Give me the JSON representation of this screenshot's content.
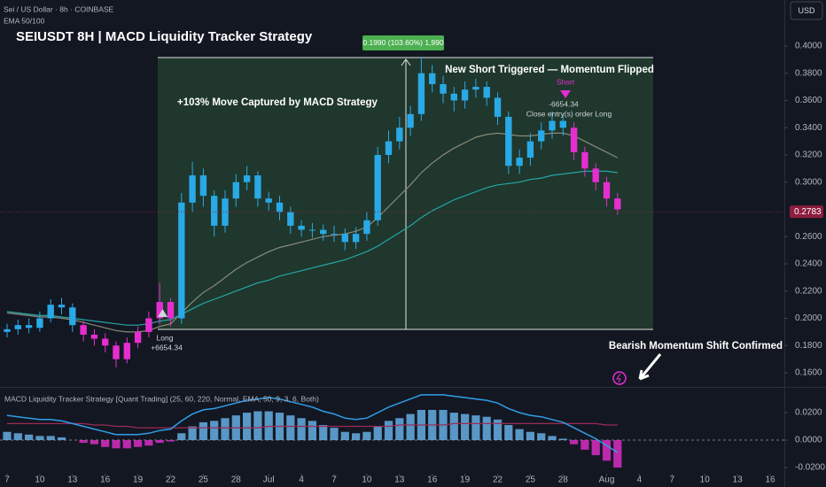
{
  "header": {
    "symbol": "Sei / US Dollar · 8h · COINBASE",
    "indicator": "EMA 50/100",
    "currency": "USD"
  },
  "chart_data": [
    {
      "type": "candlestick",
      "title": "SEIUSDT 8H | MACD Liquidity Tracker Strategy",
      "annotations": {
        "measure": "0.1990 (103.60%) 1,990",
        "move": "+103% Move Captured by MACD Strategy",
        "short_signal": "New Short Triggered — Momentum Flipped",
        "bearish": "Bearish Momentum Shift Confirmed"
      },
      "trades": {
        "long": {
          "label": "Long",
          "pnl": "+6654.34"
        },
        "short": {
          "label": "Short",
          "pnl": "-6654.34",
          "note": "Close entry(s) order Long"
        }
      },
      "x": [
        0,
        1,
        2,
        3,
        4,
        5,
        6,
        7,
        8,
        9,
        10,
        11,
        12,
        13,
        14,
        15,
        16,
        17,
        18,
        19,
        20,
        21,
        22,
        23,
        24,
        25,
        26,
        27,
        28,
        29,
        30,
        31,
        32,
        33,
        34,
        35,
        36,
        37,
        38,
        39,
        40,
        41,
        42,
        43,
        44,
        45,
        46,
        47,
        48,
        49,
        50,
        51,
        52,
        53,
        54,
        55,
        56
      ],
      "open": [
        0.19,
        0.192,
        0.195,
        0.193,
        0.2,
        0.21,
        0.208,
        0.195,
        0.188,
        0.185,
        0.18,
        0.17,
        0.182,
        0.19,
        0.2,
        0.212,
        0.2,
        0.285,
        0.305,
        0.29,
        0.268,
        0.288,
        0.3,
        0.305,
        0.288,
        0.285,
        0.278,
        0.268,
        0.265,
        0.265,
        0.262,
        0.262,
        0.256,
        0.262,
        0.272,
        0.32,
        0.33,
        0.34,
        0.35,
        0.38,
        0.372,
        0.365,
        0.36,
        0.368,
        0.37,
        0.362,
        0.348,
        0.312,
        0.318,
        0.33,
        0.338,
        0.345,
        0.34,
        0.322,
        0.31,
        0.3,
        0.288
      ],
      "high": [
        0.196,
        0.199,
        0.2,
        0.205,
        0.214,
        0.215,
        0.211,
        0.198,
        0.192,
        0.189,
        0.183,
        0.186,
        0.194,
        0.205,
        0.226,
        0.215,
        0.292,
        0.315,
        0.31,
        0.294,
        0.294,
        0.306,
        0.312,
        0.308,
        0.293,
        0.29,
        0.282,
        0.272,
        0.27,
        0.269,
        0.268,
        0.266,
        0.267,
        0.278,
        0.326,
        0.338,
        0.348,
        0.356,
        0.392,
        0.386,
        0.378,
        0.37,
        0.374,
        0.376,
        0.374,
        0.366,
        0.352,
        0.324,
        0.336,
        0.344,
        0.352,
        0.35,
        0.344,
        0.326,
        0.314,
        0.304,
        0.292
      ],
      "low": [
        0.186,
        0.188,
        0.189,
        0.19,
        0.197,
        0.203,
        0.19,
        0.183,
        0.18,
        0.175,
        0.164,
        0.167,
        0.178,
        0.186,
        0.196,
        0.194,
        0.196,
        0.278,
        0.282,
        0.26,
        0.263,
        0.282,
        0.294,
        0.282,
        0.279,
        0.272,
        0.262,
        0.26,
        0.259,
        0.257,
        0.256,
        0.25,
        0.251,
        0.257,
        0.268,
        0.314,
        0.324,
        0.334,
        0.345,
        0.366,
        0.358,
        0.352,
        0.354,
        0.362,
        0.356,
        0.342,
        0.306,
        0.306,
        0.312,
        0.324,
        0.332,
        0.334,
        0.316,
        0.304,
        0.294,
        0.282,
        0.276
      ],
      "close": [
        0.192,
        0.195,
        0.193,
        0.2,
        0.21,
        0.208,
        0.195,
        0.188,
        0.185,
        0.18,
        0.17,
        0.182,
        0.19,
        0.2,
        0.212,
        0.2,
        0.285,
        0.305,
        0.29,
        0.268,
        0.288,
        0.3,
        0.305,
        0.288,
        0.285,
        0.278,
        0.268,
        0.265,
        0.265,
        0.262,
        0.262,
        0.256,
        0.262,
        0.272,
        0.32,
        0.33,
        0.34,
        0.35,
        0.38,
        0.372,
        0.365,
        0.36,
        0.368,
        0.37,
        0.362,
        0.348,
        0.312,
        0.318,
        0.33,
        0.338,
        0.345,
        0.34,
        0.322,
        0.31,
        0.3,
        0.288,
        0.28
      ],
      "up_color": "#29a9e6",
      "down_color": "#e62ed0",
      "lines": [
        {
          "color": "#8a8a7a",
          "values": [
            0.204,
            0.203,
            0.202,
            0.201,
            0.201,
            0.2,
            0.199,
            0.197,
            0.195,
            0.193,
            0.191,
            0.19,
            0.19,
            0.191,
            0.194,
            0.196,
            0.204,
            0.212,
            0.219,
            0.224,
            0.23,
            0.236,
            0.241,
            0.245,
            0.249,
            0.252,
            0.254,
            0.256,
            0.258,
            0.26,
            0.261,
            0.262,
            0.264,
            0.267,
            0.274,
            0.282,
            0.29,
            0.298,
            0.307,
            0.314,
            0.32,
            0.325,
            0.329,
            0.333,
            0.335,
            0.336,
            0.335,
            0.334,
            0.334,
            0.335,
            0.336,
            0.336,
            0.334,
            0.33,
            0.326,
            0.322,
            0.318
          ]
        },
        {
          "color": "#26a6a6",
          "values": [
            0.205,
            0.204,
            0.203,
            0.202,
            0.202,
            0.201,
            0.2,
            0.199,
            0.198,
            0.197,
            0.196,
            0.195,
            0.195,
            0.196,
            0.198,
            0.199,
            0.203,
            0.207,
            0.211,
            0.214,
            0.217,
            0.22,
            0.223,
            0.226,
            0.228,
            0.231,
            0.233,
            0.235,
            0.237,
            0.239,
            0.241,
            0.243,
            0.246,
            0.249,
            0.253,
            0.258,
            0.263,
            0.268,
            0.274,
            0.279,
            0.283,
            0.287,
            0.29,
            0.293,
            0.296,
            0.298,
            0.299,
            0.3,
            0.302,
            0.303,
            0.305,
            0.306,
            0.307,
            0.308,
            0.308,
            0.308,
            0.307
          ]
        }
      ],
      "last_price": {
        "value": 0.2783,
        "label": "0.2783"
      },
      "last_price_color": "#8c1d3f",
      "xlim": [
        -0.65,
        71.3
      ],
      "xticks": [
        {
          "value": 0,
          "label": "7"
        },
        {
          "value": 3,
          "label": "10"
        },
        {
          "value": 6,
          "label": "13"
        },
        {
          "value": 9,
          "label": "16"
        },
        {
          "value": 12,
          "label": "19"
        },
        {
          "value": 15,
          "label": "22"
        },
        {
          "value": 18,
          "label": "25"
        },
        {
          "value": 21,
          "label": "28"
        },
        {
          "value": 24,
          "label": "Jul"
        },
        {
          "value": 27,
          "label": "4"
        },
        {
          "value": 30,
          "label": "7"
        },
        {
          "value": 33,
          "label": "10"
        },
        {
          "value": 36,
          "label": "13"
        },
        {
          "value": 39,
          "label": "16"
        },
        {
          "value": 42,
          "label": "19"
        },
        {
          "value": 45,
          "label": "22"
        },
        {
          "value": 48,
          "label": "25"
        },
        {
          "value": 51,
          "label": "28"
        },
        {
          "value": 55,
          "label": "Aug"
        },
        {
          "value": 58,
          "label": "4"
        },
        {
          "value": 61,
          "label": "7"
        },
        {
          "value": 64,
          "label": "10"
        },
        {
          "value": 67,
          "label": "13"
        },
        {
          "value": 70,
          "label": "16"
        }
      ],
      "ylim": [
        0.1496,
        0.4338
      ],
      "yticks": [
        {
          "value": 0.4,
          "label": "0.4000"
        },
        {
          "value": 0.38,
          "label": "0.3800"
        },
        {
          "value": 0.36,
          "label": "0.3600"
        },
        {
          "value": 0.34,
          "label": "0.3400"
        },
        {
          "value": 0.32,
          "label": "0.3200"
        },
        {
          "value": 0.3,
          "label": "0.3000"
        },
        {
          "value": 0.26,
          "label": "0.2600"
        },
        {
          "value": 0.24,
          "label": "0.2400"
        },
        {
          "value": 0.22,
          "label": "0.2200"
        },
        {
          "value": 0.2,
          "label": "0.2000"
        },
        {
          "value": 0.18,
          "label": "0.1800"
        },
        {
          "value": 0.16,
          "label": "0.1600"
        }
      ]
    },
    {
      "type": "macd",
      "title": "MACD Liquidity Tracker Strategy [Quant Trading] (25, 60, 220, Normal, EMA, 50, 9, 3, 6, Both)",
      "x": [
        0,
        1,
        2,
        3,
        4,
        5,
        6,
        7,
        8,
        9,
        10,
        11,
        12,
        13,
        14,
        15,
        16,
        17,
        18,
        19,
        20,
        21,
        22,
        23,
        24,
        25,
        26,
        27,
        28,
        29,
        30,
        31,
        32,
        33,
        34,
        35,
        36,
        37,
        38,
        39,
        40,
        41,
        42,
        43,
        44,
        45,
        46,
        47,
        48,
        49,
        50,
        51,
        52,
        53,
        54,
        55,
        56
      ],
      "histogram": [
        0.006,
        0.005,
        0.004,
        0.003,
        0.003,
        0.002,
        0.0,
        -0.002,
        -0.003,
        -0.005,
        -0.006,
        -0.006,
        -0.005,
        -0.004,
        -0.002,
        -0.001,
        0.005,
        0.01,
        0.013,
        0.014,
        0.016,
        0.018,
        0.02,
        0.021,
        0.021,
        0.02,
        0.018,
        0.016,
        0.014,
        0.011,
        0.009,
        0.006,
        0.005,
        0.006,
        0.01,
        0.014,
        0.016,
        0.019,
        0.022,
        0.022,
        0.022,
        0.02,
        0.019,
        0.018,
        0.017,
        0.015,
        0.011,
        0.008,
        0.006,
        0.005,
        0.003,
        0.001,
        -0.003,
        -0.007,
        -0.011,
        -0.015,
        -0.02
      ],
      "pos_color": "#6ab8f0",
      "neg_color": "#e62ed0",
      "macd": [
        0.018,
        0.017,
        0.016,
        0.015,
        0.015,
        0.014,
        0.012,
        0.01,
        0.008,
        0.006,
        0.004,
        0.004,
        0.004,
        0.005,
        0.007,
        0.008,
        0.014,
        0.019,
        0.022,
        0.023,
        0.025,
        0.027,
        0.029,
        0.03,
        0.031,
        0.03,
        0.028,
        0.026,
        0.024,
        0.021,
        0.019,
        0.016,
        0.015,
        0.016,
        0.02,
        0.024,
        0.027,
        0.03,
        0.033,
        0.033,
        0.033,
        0.032,
        0.031,
        0.03,
        0.029,
        0.027,
        0.023,
        0.02,
        0.018,
        0.017,
        0.015,
        0.013,
        0.009,
        0.005,
        0.001,
        -0.004,
        -0.009
      ],
      "macd_color": "#2f9ee8",
      "signal": [
        0.012,
        0.012,
        0.012,
        0.012,
        0.012,
        0.012,
        0.012,
        0.012,
        0.011,
        0.011,
        0.01,
        0.01,
        0.009,
        0.009,
        0.009,
        0.009,
        0.009,
        0.009,
        0.009,
        0.009,
        0.009,
        0.009,
        0.009,
        0.009,
        0.01,
        0.01,
        0.01,
        0.01,
        0.01,
        0.01,
        0.01,
        0.01,
        0.01,
        0.01,
        0.01,
        0.01,
        0.011,
        0.011,
        0.011,
        0.011,
        0.011,
        0.012,
        0.012,
        0.012,
        0.012,
        0.012,
        0.012,
        0.012,
        0.012,
        0.012,
        0.012,
        0.012,
        0.012,
        0.012,
        0.012,
        0.011,
        0.011
      ],
      "signal_color": "#9c2a55",
      "xlim": [
        -0.65,
        71.3
      ],
      "ylim": [
        -0.0245,
        0.0381
      ],
      "yticks": [
        {
          "value": 0.02,
          "label": "0.0200"
        },
        {
          "value": 0,
          "label": "0.0000"
        },
        {
          "value": -0.02,
          "label": "-0.0200"
        }
      ]
    }
  ]
}
